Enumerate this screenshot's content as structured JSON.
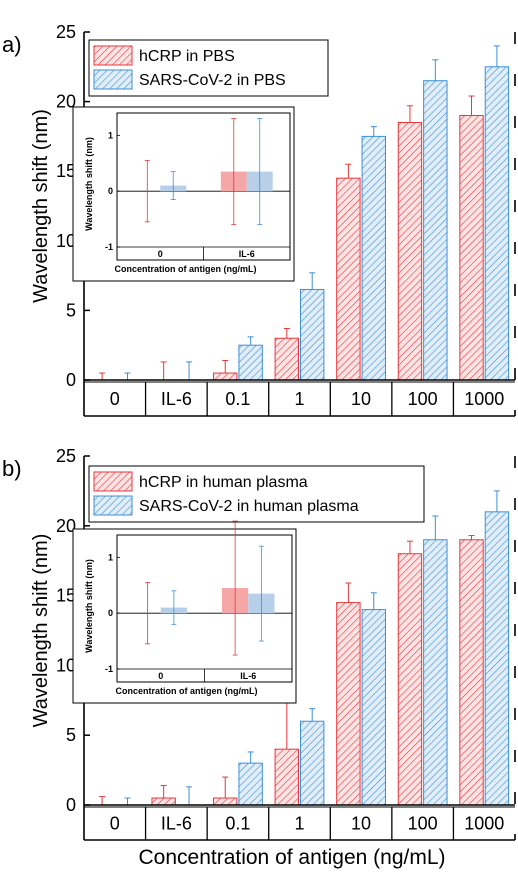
{
  "figure_xlabel": "Concentration of antigen (ng/mL)",
  "chart_data": [
    {
      "panel": "a)",
      "type": "bar",
      "ylabel": "Wavelength shift (nm)",
      "ylim": [
        0,
        25
      ],
      "yticks": [
        0,
        5,
        10,
        15,
        20,
        25
      ],
      "categories": [
        "0",
        "IL-6",
        "0.1",
        "1",
        "10",
        "100",
        "1000"
      ],
      "legend_position": "top-left",
      "series": [
        {
          "name": "hCRP in PBS",
          "color": "#e8363a",
          "pattern": "hatch-red",
          "values": [
            0,
            0,
            0.5,
            3.0,
            14.5,
            18.5,
            19.0
          ],
          "errors": [
            0.5,
            1.3,
            0.9,
            0.7,
            1.0,
            1.2,
            1.4
          ]
        },
        {
          "name": "SARS-CoV-2 in PBS",
          "color": "#3d8fd6",
          "pattern": "hatch-blue",
          "values": [
            0,
            0,
            2.5,
            6.5,
            17.5,
            21.5,
            22.5
          ],
          "errors": [
            0.5,
            1.3,
            0.6,
            1.2,
            0.7,
            1.5,
            1.5
          ]
        }
      ],
      "inset": {
        "xlabel": "Concentration of antigen (ng/mL)",
        "ylabel": "Wavelength shift (nm)",
        "categories": [
          "0",
          "IL-6"
        ],
        "ylim": [
          -1,
          1.4
        ],
        "yticks": [
          -1,
          0,
          1
        ],
        "series": [
          {
            "name": "hCRP in PBS",
            "values": [
              0.0,
              0.35
            ],
            "errors": [
              0.55,
              0.95
            ]
          },
          {
            "name": "SARS-CoV-2 in PBS",
            "values": [
              0.1,
              0.35
            ],
            "errors": [
              0.25,
              0.95
            ]
          }
        ]
      }
    },
    {
      "panel": "b)",
      "type": "bar",
      "ylabel": "Wavelength shift (nm)",
      "ylim": [
        0,
        25
      ],
      "yticks": [
        0,
        5,
        10,
        15,
        20,
        25
      ],
      "categories": [
        "0",
        "IL-6",
        "0.1",
        "1",
        "10",
        "100",
        "1000"
      ],
      "legend_position": "top-left",
      "series": [
        {
          "name": "hCRP in human plasma",
          "color": "#e8363a",
          "pattern": "hatch-red",
          "values": [
            0,
            0.5,
            0.5,
            4.0,
            14.5,
            18.0,
            19.0
          ],
          "errors": [
            0.6,
            0.9,
            1.5,
            3.8,
            1.4,
            0.9,
            0.3
          ]
        },
        {
          "name": "SARS-CoV-2 in human plasma",
          "color": "#3d8fd6",
          "pattern": "hatch-blue",
          "values": [
            0,
            0,
            3.0,
            6.0,
            14.0,
            19.0,
            21.0
          ],
          "errors": [
            0.5,
            1.3,
            0.8,
            0.9,
            1.2,
            1.7,
            1.5
          ]
        }
      ],
      "inset": {
        "xlabel": "Concentration of antigen (ng/mL)",
        "ylabel": "Wavelength shift (nm)",
        "categories": [
          "0",
          "IL-6"
        ],
        "ylim": [
          -1,
          1.4
        ],
        "yticks": [
          -1,
          0,
          1
        ],
        "series": [
          {
            "name": "hCRP in human plasma",
            "values": [
              0.0,
              0.45
            ],
            "errors": [
              0.55,
              1.2
            ]
          },
          {
            "name": "SARS-CoV-2 in human plasma",
            "values": [
              0.1,
              0.35
            ],
            "errors": [
              0.3,
              0.85
            ]
          }
        ]
      }
    }
  ]
}
